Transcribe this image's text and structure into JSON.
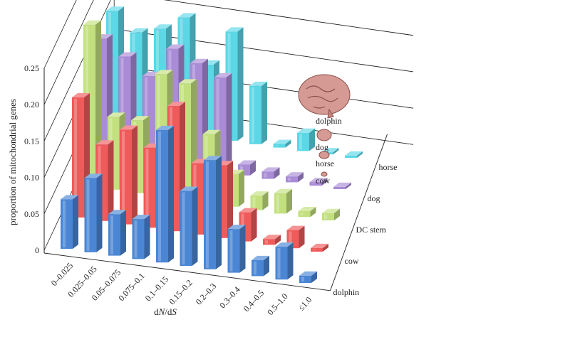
{
  "chart_data": {
    "type": "bar",
    "style": "3d-clustered-columns",
    "xlabel": "dN/dS",
    "ylabel": "proportion of mitochondrial genes",
    "ylim": [
      0,
      0.25
    ],
    "yticks": [
      "0",
      "0.05",
      "0.10",
      "0.15",
      "0.20",
      "0.25"
    ],
    "categories": [
      "0–0.025",
      "0.025–0.05",
      "0.05–0.075",
      "0.075–0.1",
      "0.1–0.15",
      "0.15–0.2",
      "0.2–0.3",
      "0.3–0.4",
      "0.4–0.5",
      "0.5–1.0",
      "≤1.0"
    ],
    "series": [
      {
        "name": "dolphin",
        "color": "#4a86d4",
        "values": [
          0.068,
          0.102,
          0.057,
          0.055,
          0.182,
          0.103,
          0.15,
          0.06,
          0.022,
          0.045,
          0.01
        ]
      },
      {
        "name": "cow",
        "color": "#ef5b5b",
        "values": [
          0.165,
          0.105,
          0.13,
          0.11,
          0.172,
          0.098,
          0.1,
          0.04,
          0.008,
          0.025,
          0.005
        ]
      },
      {
        "name": "DC stem",
        "color": "#c3e07e",
        "values": [
          0.222,
          0.1,
          0.1,
          0.168,
          0.16,
          0.095,
          0.045,
          0.02,
          0.028,
          0.008,
          0.01
        ]
      },
      {
        "name": "dog",
        "color": "#a98bd6",
        "values": [
          0.16,
          0.14,
          0.118,
          0.16,
          0.145,
          0.13,
          0.015,
          0.01,
          0.008,
          0.005,
          0.003
        ]
      },
      {
        "name": "horse",
        "color": "#5bd7e6",
        "values": [
          0.155,
          0.13,
          0.14,
          0.16,
          0.1,
          0.15,
          0.08,
          0.005,
          0.025,
          0.003,
          0.003
        ]
      }
    ],
    "legend_placement": "right",
    "grid": true
  },
  "annotations": {
    "brain_labels": [
      "dolphin",
      "dog",
      "horse",
      "cow"
    ]
  }
}
